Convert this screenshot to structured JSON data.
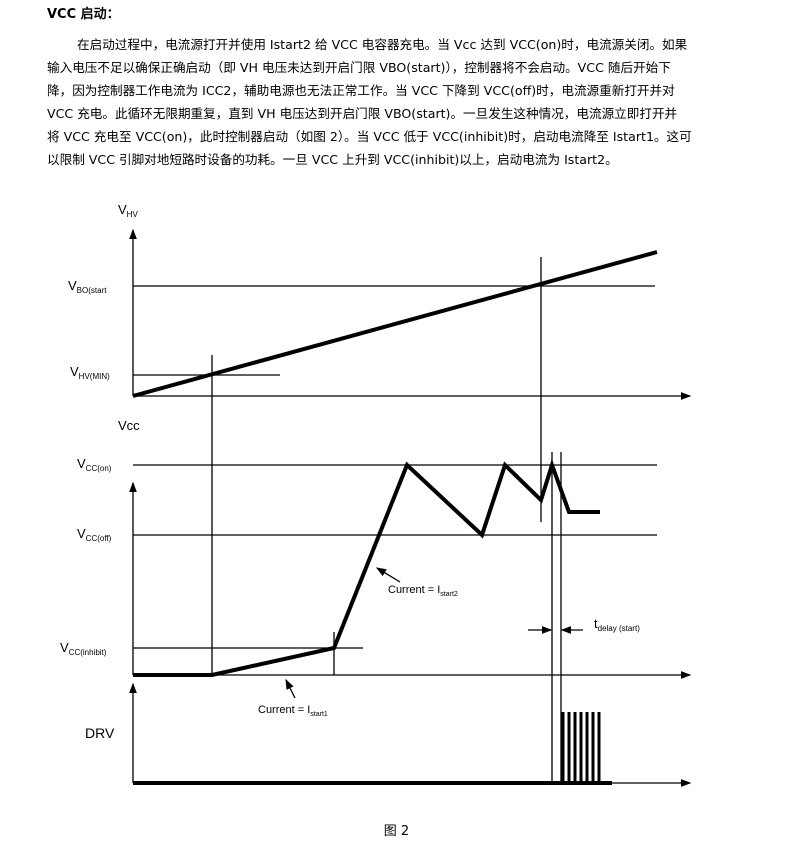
{
  "heading": "VCC 启动：",
  "paragraph_lines": [
    "在启动过程中，电流源打开并使用 Istart2 给 VCC 电容器充电。当 Vcc 达到 VCC(on)时，电流源关闭。如果",
    "输入电压不足以确保正确启动（即 VH 电压未达到开启门限 VBO(start)），控制器将不会启动。VCC 随后开始下",
    "降，因为控制器工作电流为 ICC2，辅助电源也无法正常工作。当 VCC 下降到 VCC(off)时，电流源重新打开并对",
    "VCC 充电。此循环无限期重复，直到 VH 电压达到开启门限 VBO(start)。一旦发生这种情况，电流源立即打开并",
    "将 VCC 充电至 VCC(on)，此时控制器启动（如图 2）。当 VCC 低于 VCC(inhibit)时，启动电流降至  Istart1。这可",
    "以限制 VCC 引脚对地短路时设备的功耗。一旦 VCC 上升到 VCC(inhibit)以上，启动电流为 Istart2。"
  ],
  "diagram": {
    "vhv": {
      "main": "V",
      "sub": "HV"
    },
    "vbo": {
      "main": "V",
      "sub": "BO(start"
    },
    "vhvmin": {
      "main": "V",
      "sub": "HV(MIN)"
    },
    "vcc": "Vcc",
    "vccon": {
      "main": "V",
      "sub": "CC(on)"
    },
    "vccoff": {
      "main": "V",
      "sub": "CC(off)"
    },
    "vccinh": {
      "main": "V",
      "sub": "CC(inhibit)"
    },
    "drv": "DRV",
    "istart2": {
      "main": "Current = I",
      "sub": "start2"
    },
    "istart1": {
      "main": "Current = I",
      "sub": "start1"
    },
    "tdelay": {
      "main": "t",
      "sub": "delay (start)"
    }
  },
  "caption": "图 2"
}
